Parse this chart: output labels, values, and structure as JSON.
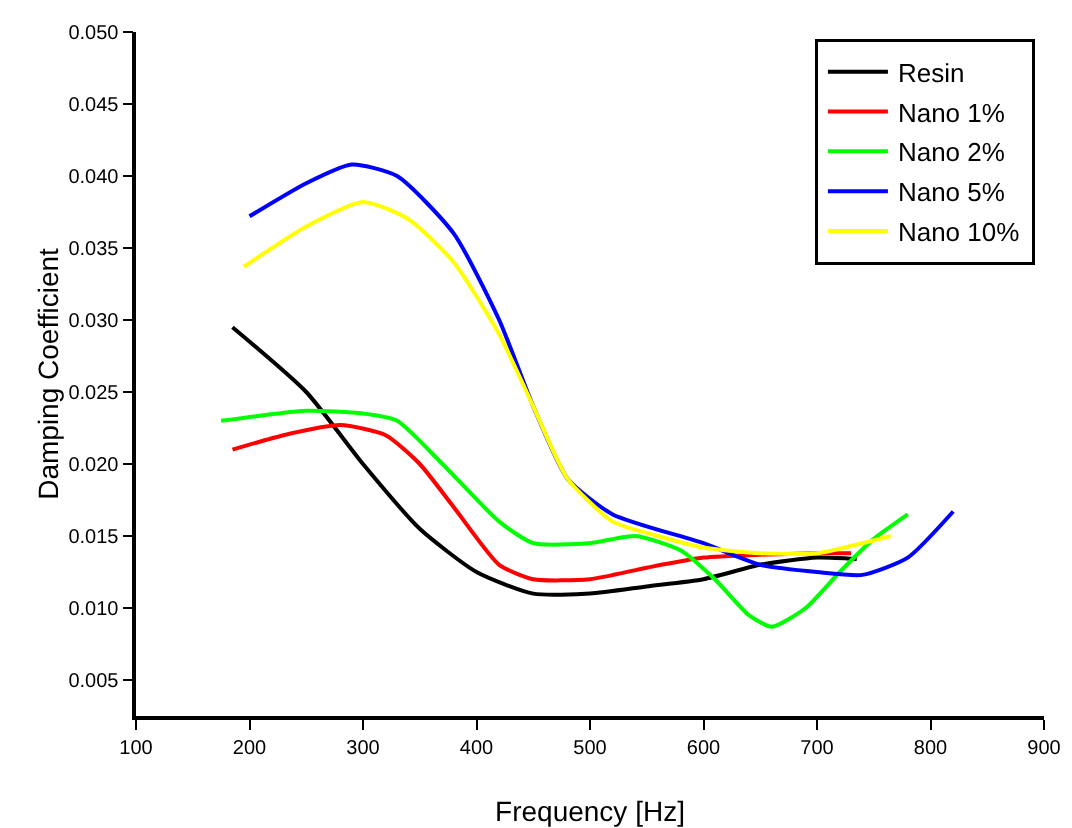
{
  "chart_data": {
    "type": "line",
    "xlabel": "Frequency [Hz]",
    "ylabel": "Damping Coefficient",
    "xlim": [
      100,
      900
    ],
    "xticks": [
      100,
      200,
      300,
      400,
      500,
      600,
      700,
      800,
      900
    ],
    "ylim": [
      0.0025,
      0.05
    ],
    "yticks": [
      {
        "value": 0.005,
        "label": "0.005"
      },
      {
        "value": 0.01,
        "label": "0.010"
      },
      {
        "value": 0.015,
        "label": "0.015"
      },
      {
        "value": 0.02,
        "label": "0.020"
      },
      {
        "value": 0.025,
        "label": "0.025"
      },
      {
        "value": 0.03,
        "label": "0.030"
      },
      {
        "value": 0.035,
        "label": "0.035"
      },
      {
        "value": 0.04,
        "label": "0.040"
      },
      {
        "value": 0.045,
        "label": "0.045"
      },
      {
        "value": 0.05,
        "label": "0.050"
      }
    ],
    "grid": false,
    "legend": "top right",
    "marker": "none",
    "line_style": "solid",
    "series": [
      {
        "name": "Resin",
        "color": "#000000",
        "x": [
          185,
          250,
          300,
          350,
          400,
          450,
          500,
          550,
          600,
          650,
          700,
          735
        ],
        "values": [
          0.0295,
          0.025,
          0.02,
          0.0155,
          0.0125,
          0.011,
          0.011,
          0.0115,
          0.012,
          0.013,
          0.0135,
          0.0134
        ]
      },
      {
        "name": "Nano 1%",
        "color": "#ff0000",
        "x": [
          185,
          230,
          280,
          320,
          350,
          380,
          420,
          450,
          500,
          550,
          600,
          650,
          700,
          730
        ],
        "values": [
          0.021,
          0.022,
          0.0227,
          0.022,
          0.02,
          0.017,
          0.013,
          0.012,
          0.012,
          0.0128,
          0.0135,
          0.0137,
          0.0138,
          0.0138
        ]
      },
      {
        "name": "Nano 2%",
        "color": "#00ff00",
        "x": [
          175,
          250,
          300,
          330,
          370,
          420,
          450,
          500,
          540,
          580,
          610,
          640,
          660,
          690,
          720,
          750,
          780
        ],
        "values": [
          0.023,
          0.0237,
          0.0235,
          0.023,
          0.02,
          0.016,
          0.0145,
          0.0145,
          0.015,
          0.014,
          0.012,
          0.0095,
          0.0087,
          0.01,
          0.0125,
          0.0148,
          0.0165
        ]
      },
      {
        "name": "Nano 5%",
        "color": "#0000ff",
        "x": [
          200,
          250,
          290,
          330,
          380,
          420,
          450,
          480,
          520,
          600,
          650,
          700,
          740,
          780,
          820
        ],
        "values": [
          0.0372,
          0.0395,
          0.0408,
          0.04,
          0.036,
          0.03,
          0.024,
          0.019,
          0.0165,
          0.0145,
          0.013,
          0.0125,
          0.0123,
          0.0135,
          0.0167
        ]
      },
      {
        "name": "Nano 10%",
        "color": "#ffff00",
        "x": [
          195,
          250,
          300,
          340,
          380,
          420,
          450,
          480,
          520,
          560,
          600,
          650,
          700,
          740,
          765
        ],
        "values": [
          0.0337,
          0.0365,
          0.0382,
          0.037,
          0.034,
          0.029,
          0.024,
          0.019,
          0.016,
          0.015,
          0.0142,
          0.0138,
          0.0138,
          0.0145,
          0.015
        ]
      }
    ]
  }
}
